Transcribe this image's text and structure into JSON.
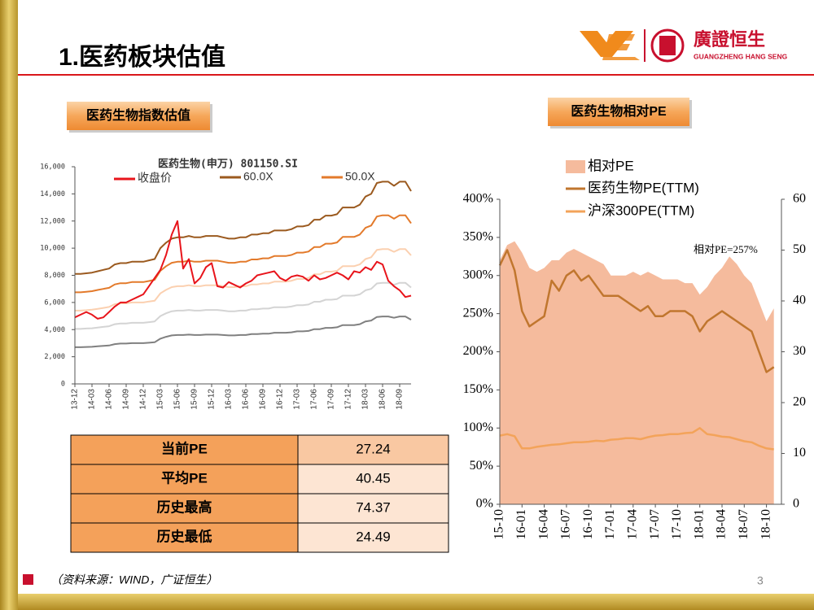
{
  "header": {
    "title": "1.医药板块估值",
    "logo_name": "廣證恒生",
    "logo_sub": "GUANGZHENG HANG SENG"
  },
  "sections": [
    "医药生物指数估值",
    "医药生物相对PE"
  ],
  "chart_data": [
    {
      "type": "line",
      "title": "医药生物(申万) 801150.SI",
      "categories": [
        "13-12",
        null,
        null,
        "14-03",
        null,
        null,
        "14-06",
        null,
        null,
        "14-09",
        null,
        null,
        "14-12",
        null,
        null,
        "15-03",
        null,
        null,
        "15-06",
        null,
        null,
        "15-09",
        null,
        null,
        "15-12",
        null,
        null,
        "16-03",
        null,
        null,
        "16-06",
        null,
        null,
        "16-09",
        null,
        null,
        "16-12",
        null,
        null,
        "17-03",
        null,
        null,
        "17-06",
        null,
        null,
        "17-09",
        null,
        null,
        "17-12",
        null,
        null,
        "18-03",
        null,
        null,
        "18-06",
        null,
        null,
        "18-09",
        null,
        null
      ],
      "series": [
        {
          "color": "#808080",
          "values": [
            2700,
            2700,
            2720,
            2730,
            2770,
            2800,
            2830,
            2930,
            2970,
            2970,
            3000,
            3000,
            3000,
            3030,
            3070,
            3330,
            3470,
            3570,
            3600,
            3600,
            3630,
            3600,
            3600,
            3630,
            3630,
            3630,
            3600,
            3570,
            3570,
            3600,
            3600,
            3670,
            3670,
            3700,
            3700,
            3770,
            3770,
            3770,
            3800,
            3870,
            3870,
            3900,
            4030,
            4030,
            4130,
            4130,
            4170,
            4330,
            4330,
            4330,
            4400,
            4600,
            4670,
            4930,
            4970,
            4970,
            4870,
            4970,
            4970,
            4730
          ]
        },
        {
          "color": "#d4d4d4",
          "values": [
            4050,
            4050,
            4080,
            4100,
            4150,
            4200,
            4250,
            4400,
            4450,
            4450,
            4500,
            4500,
            4500,
            4550,
            4600,
            5000,
            5200,
            5350,
            5400,
            5400,
            5450,
            5400,
            5400,
            5450,
            5450,
            5450,
            5400,
            5350,
            5350,
            5400,
            5400,
            5500,
            5500,
            5550,
            5550,
            5650,
            5650,
            5650,
            5700,
            5800,
            5800,
            5850,
            6050,
            6050,
            6200,
            6200,
            6250,
            6500,
            6500,
            6500,
            6600,
            6900,
            7000,
            7400,
            7450,
            7450,
            7300,
            7450,
            7450,
            7100
          ]
        },
        {
          "color": "#fbd0b0",
          "values": [
            5400,
            5400,
            5430,
            5470,
            5530,
            5600,
            5670,
            5870,
            5930,
            5930,
            6000,
            6000,
            6000,
            6070,
            6130,
            6670,
            6930,
            7130,
            7200,
            7200,
            7270,
            7200,
            7200,
            7270,
            7270,
            7270,
            7200,
            7130,
            7130,
            7200,
            7200,
            7330,
            7330,
            7400,
            7400,
            7530,
            7530,
            7530,
            7600,
            7730,
            7730,
            7800,
            8070,
            8070,
            8270,
            8270,
            8330,
            8670,
            8670,
            8670,
            8800,
            9200,
            9330,
            9870,
            9930,
            9930,
            9730,
            9930,
            9930,
            9470
          ]
        },
        {
          "name": "50.0X",
          "color": "#e37a2b",
          "values": [
            6750,
            6750,
            6790,
            6830,
            6920,
            7000,
            7080,
            7330,
            7420,
            7420,
            7500,
            7500,
            7500,
            7580,
            7670,
            8330,
            8670,
            8920,
            9000,
            9000,
            9080,
            9000,
            9000,
            9080,
            9080,
            9080,
            9000,
            8920,
            8920,
            9000,
            9000,
            9170,
            9170,
            9250,
            9250,
            9420,
            9420,
            9420,
            9500,
            9670,
            9670,
            9750,
            10080,
            10080,
            10330,
            10330,
            10420,
            10830,
            10830,
            10830,
            11000,
            11500,
            11670,
            12330,
            12420,
            12420,
            12170,
            12420,
            12420,
            11830
          ]
        },
        {
          "name": "60.0X",
          "color": "#9b5a1f",
          "values": [
            8100,
            8100,
            8150,
            8200,
            8300,
            8400,
            8500,
            8800,
            8900,
            8900,
            9000,
            9000,
            9000,
            9100,
            9200,
            10000,
            10400,
            10700,
            10800,
            10800,
            10900,
            10800,
            10800,
            10900,
            10900,
            10900,
            10800,
            10700,
            10700,
            10800,
            10800,
            11000,
            11000,
            11100,
            11100,
            11300,
            11300,
            11300,
            11400,
            11600,
            11600,
            11700,
            12100,
            12100,
            12400,
            12400,
            12500,
            13000,
            13000,
            13000,
            13200,
            13800,
            14000,
            14800,
            14900,
            14900,
            14600,
            14900,
            14900,
            14200
          ]
        },
        {
          "name": "收盘价",
          "color": "#e8141b",
          "values": [
            4900,
            5100,
            5300,
            5100,
            4800,
            4900,
            5300,
            5700,
            6000,
            6000,
            6200,
            6400,
            6600,
            7200,
            7800,
            8400,
            9500,
            11000,
            12000,
            8500,
            9200,
            7400,
            7800,
            8600,
            8900,
            7200,
            7100,
            7500,
            7300,
            7100,
            7400,
            7600,
            8000,
            8100,
            8200,
            8300,
            7800,
            7600,
            7900,
            8000,
            7900,
            7600,
            8000,
            7700,
            7800,
            8000,
            8200,
            8000,
            7700,
            8300,
            8200,
            8600,
            8400,
            9000,
            8800,
            7600,
            7200,
            6900,
            6400,
            6500
          ]
        }
      ],
      "legend_order": [
        5,
        4,
        3
      ],
      "ylim": [
        0,
        16000
      ],
      "yticks": [
        0,
        {
          "value": 2000,
          "label": "2,000"
        },
        {
          "value": 4000,
          "label": "4,000"
        },
        {
          "value": 6000,
          "label": "6,000"
        },
        {
          "value": 8000,
          "label": "8,000"
        },
        {
          "value": 10000,
          "label": "10,000"
        },
        {
          "value": 12000,
          "label": "12,000"
        },
        {
          "value": 14000,
          "label": "14,000"
        },
        {
          "value": 16000,
          "label": "16,000"
        }
      ],
      "grid": false
    },
    {
      "type": "line",
      "categories": [
        "15-10",
        null,
        null,
        "16-01",
        null,
        null,
        "16-04",
        null,
        null,
        "16-07",
        null,
        null,
        "16-10",
        null,
        null,
        "17-01",
        null,
        null,
        "17-04",
        null,
        null,
        "17-07",
        null,
        null,
        "17-10",
        null,
        null,
        "18-01",
        null,
        null,
        "18-04",
        null,
        null,
        "18-07",
        null,
        null,
        "18-10",
        null
      ],
      "series": [
        {
          "name": "相对PE",
          "type": "area",
          "color": "#f5bb9d",
          "values": [
            320,
            340,
            345,
            330,
            310,
            305,
            310,
            320,
            320,
            330,
            335,
            330,
            325,
            320,
            315,
            300,
            300,
            300,
            305,
            300,
            305,
            300,
            295,
            295,
            295,
            290,
            290,
            275,
            285,
            300,
            310,
            325,
            315,
            300,
            290,
            265,
            240,
            257
          ]
        },
        {
          "name": "医药生物PE(TTM)",
          "axis": "y2",
          "color": "#c0762e",
          "values": [
            47,
            50,
            46,
            38,
            35,
            36,
            37,
            44,
            42,
            45,
            46,
            44,
            45,
            43,
            41,
            41,
            41,
            40,
            39,
            38,
            39,
            37,
            37,
            38,
            38,
            38,
            37,
            34,
            36,
            37,
            38,
            37,
            36,
            35,
            34,
            30,
            26,
            27
          ]
        },
        {
          "name": "沪深300PE(TTM)",
          "axis": "y2",
          "color": "#f3a35a",
          "values": [
            13.5,
            13.8,
            13.4,
            11,
            11,
            11.3,
            11.5,
            11.7,
            11.8,
            12,
            12.2,
            12.2,
            12.3,
            12.5,
            12.4,
            12.7,
            12.8,
            13,
            13,
            12.8,
            13.2,
            13.5,
            13.6,
            13.8,
            13.8,
            14,
            14.1,
            15,
            13.8,
            13.6,
            13.3,
            13.2,
            12.8,
            12.4,
            12.2,
            11.5,
            11,
            10.8
          ]
        }
      ],
      "legend_order": [
        0,
        1,
        2
      ],
      "annotation": "相对PE=257%",
      "ylim": [
        0,
        400
      ],
      "yticks": [
        {
          "value": 0,
          "label": "0%"
        },
        {
          "value": 50,
          "label": "50%"
        },
        {
          "value": 100,
          "label": "100%"
        },
        {
          "value": 150,
          "label": "150%"
        },
        {
          "value": 200,
          "label": "200%"
        },
        {
          "value": 250,
          "label": "250%"
        },
        {
          "value": 300,
          "label": "300%"
        },
        {
          "value": 350,
          "label": "350%"
        },
        {
          "value": 400,
          "label": "400%"
        }
      ],
      "y2lim": [
        0,
        60
      ],
      "y2ticks": [
        0,
        10,
        20,
        30,
        40,
        50,
        60
      ],
      "grid": false
    }
  ],
  "table": {
    "rows": [
      [
        "当前PE",
        "27.24"
      ],
      [
        "平均PE",
        "40.45"
      ],
      [
        "历史最高",
        "74.37"
      ],
      [
        "历史最低",
        "24.49"
      ]
    ]
  },
  "footer": {
    "source": "（资料来源：WIND，广证恒生）",
    "page": "3"
  }
}
